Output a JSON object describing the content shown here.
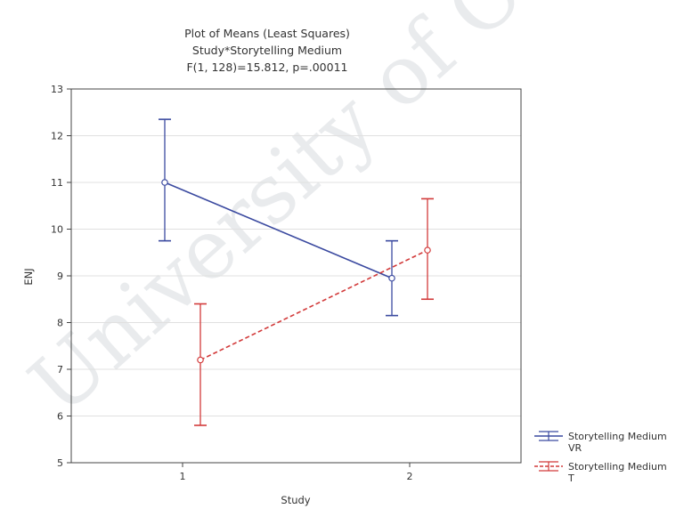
{
  "chart_data": {
    "type": "line",
    "title": [
      "Plot of Means (Least Squares)",
      "Study*Storytelling Medium",
      "F(1, 128)=15.812, p=.00011"
    ],
    "xlabel": "Study",
    "ylabel": "ENJ",
    "categories": [
      "1",
      "2"
    ],
    "ylim": [
      5,
      13
    ],
    "yticks": [
      5,
      6,
      7,
      8,
      9,
      10,
      11,
      12,
      13
    ],
    "grid": true,
    "legend_position": "bottom-right",
    "series": [
      {
        "name": "Storytelling Medium VR",
        "color": "#3b4aa0",
        "line_style": "solid",
        "values": [
          11.0,
          8.95
        ],
        "lower": [
          9.75,
          8.15
        ],
        "upper": [
          12.35,
          9.75
        ]
      },
      {
        "name": "Storytelling Medium T",
        "color": "#d23a3a",
        "line_style": "dashed",
        "values": [
          7.2,
          9.55
        ],
        "lower": [
          5.8,
          8.5
        ],
        "upper": [
          8.4,
          10.65
        ]
      }
    ]
  },
  "watermark": "University of Cape"
}
